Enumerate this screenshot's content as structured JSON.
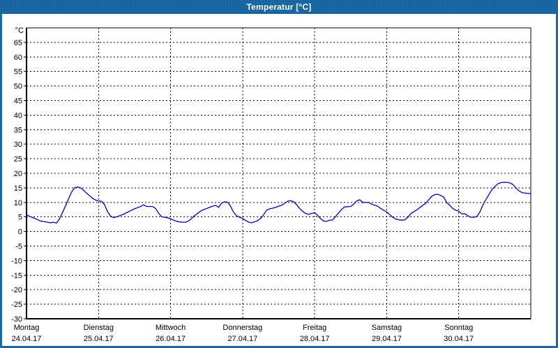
{
  "window": {
    "title": "Temperatur [°C]",
    "titlebar_color": "#1b6aa5",
    "border_color": "#1b6aa5"
  },
  "chart_data": {
    "type": "line",
    "title": "Temperatur [°C]",
    "ylabel": "°C",
    "ylim": [
      -30,
      70
    ],
    "ytick_step": 5,
    "ytick_labels": [
      65,
      60,
      55,
      50,
      45,
      40,
      35,
      30,
      25,
      20,
      15,
      10,
      5,
      0,
      -5,
      -10,
      -15,
      -20,
      -25,
      -30
    ],
    "grid": "dashed",
    "legend_position": "none",
    "background": "#ffffff",
    "x_axis": {
      "days": [
        {
          "label": "Montag",
          "date": "24.04.17"
        },
        {
          "label": "Dienstag",
          "date": "25.04.17"
        },
        {
          "label": "Mittwoch",
          "date": "26.04.17"
        },
        {
          "label": "Donnerstag",
          "date": "27.04.17"
        },
        {
          "label": "Freitag",
          "date": "28.04.17"
        },
        {
          "label": "Samstag",
          "date": "29.04.17"
        },
        {
          "label": "Sonntag",
          "date": "30.04.17"
        }
      ]
    },
    "series": [
      {
        "name": "Temperatur",
        "color": "#0000bb",
        "sampling": "hourly",
        "values": [
          5.8,
          5.2,
          4.8,
          4.4,
          3.9,
          3.5,
          3.4,
          3.2,
          3.0,
          3.2,
          2.9,
          4.3,
          6.5,
          8.8,
          11.2,
          13.5,
          15.0,
          15.3,
          15.0,
          14.2,
          13.2,
          12.3,
          11.4,
          10.8,
          10.5,
          10.4,
          9.2,
          6.8,
          5.3,
          4.8,
          5.0,
          5.4,
          5.8,
          6.3,
          6.8,
          7.3,
          7.8,
          8.2,
          8.6,
          9.2,
          8.6,
          8.6,
          8.6,
          7.9,
          6.3,
          5.1,
          4.9,
          4.7,
          4.4,
          3.9,
          3.5,
          3.3,
          3.2,
          3.2,
          3.6,
          4.5,
          5.5,
          6.2,
          7.0,
          7.5,
          7.9,
          8.3,
          8.7,
          9.0,
          8.3,
          9.7,
          10.2,
          10.1,
          8.6,
          6.6,
          5.4,
          4.9,
          4.5,
          3.8,
          3.2,
          3.0,
          3.3,
          3.7,
          4.5,
          5.8,
          7.3,
          7.8,
          8.0,
          8.3,
          8.7,
          9.0,
          9.7,
          10.4,
          10.6,
          10.2,
          9.2,
          7.9,
          6.9,
          6.2,
          5.9,
          6.2,
          6.5,
          5.5,
          4.4,
          3.6,
          3.5,
          3.9,
          4.0,
          5.2,
          6.4,
          7.6,
          8.5,
          8.5,
          8.6,
          9.4,
          10.5,
          10.9,
          10.0,
          10.0,
          10.0,
          9.4,
          9.0,
          8.7,
          7.9,
          7.3,
          6.7,
          5.8,
          4.9,
          4.3,
          4.0,
          3.9,
          4.0,
          4.8,
          6.1,
          6.8,
          7.4,
          8.2,
          9.0,
          9.7,
          10.9,
          12.1,
          12.7,
          12.8,
          12.4,
          11.8,
          9.9,
          9.0,
          7.9,
          7.3,
          7.0,
          6.0,
          6.1,
          5.4,
          4.9,
          4.9,
          5.1,
          6.6,
          9.0,
          10.9,
          12.6,
          14.3,
          15.4,
          16.4,
          16.8,
          16.9,
          16.9,
          16.7,
          16.2,
          15.0,
          14.0,
          13.4,
          13.2,
          13.1,
          13.0
        ]
      }
    ]
  }
}
